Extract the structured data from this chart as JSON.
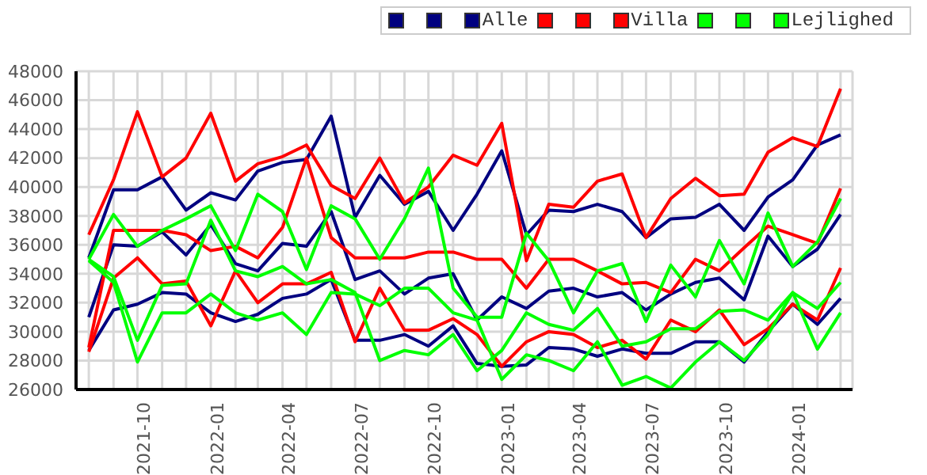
{
  "chart_data": {
    "type": "line",
    "x": [
      "2021-08",
      "2021-09",
      "2021-10",
      "2021-11",
      "2021-12",
      "2022-01",
      "2022-02",
      "2022-03",
      "2022-04",
      "2022-05",
      "2022-06",
      "2022-07",
      "2022-08",
      "2022-09",
      "2022-10",
      "2022-11",
      "2022-12",
      "2023-01",
      "2023-02",
      "2023-03",
      "2023-04",
      "2023-05",
      "2023-06",
      "2023-07",
      "2023-08",
      "2023-09",
      "2023-10",
      "2023-11",
      "2023-12",
      "2024-01",
      "2024-02",
      "2024-03"
    ],
    "series": [
      {
        "color": "#000080",
        "values": [
          35100,
          39800,
          39800,
          40700,
          38400,
          39600,
          39100,
          41100,
          41700,
          41900,
          44900,
          37900,
          40800,
          38800,
          39700,
          37000,
          39500,
          42500,
          36700,
          38400,
          38300,
          38800,
          38300,
          36500,
          37800,
          37900,
          38800,
          37000,
          39300,
          40500,
          42900,
          43600
        ]
      },
      {
        "color": "#000080",
        "values": [
          31000,
          36000,
          35900,
          36900,
          35300,
          37400,
          34700,
          34200,
          36100,
          35900,
          38300,
          33600,
          34200,
          32600,
          33700,
          34000,
          30800,
          32400,
          31600,
          32800,
          33000,
          32400,
          32700,
          31500,
          32600,
          33400,
          33700,
          32200,
          36600,
          34500,
          35700,
          38100
        ]
      },
      {
        "name": "Alle",
        "color": "#000080",
        "values": [
          28700,
          31500,
          31900,
          32700,
          32600,
          31300,
          30700,
          31200,
          32300,
          32600,
          33600,
          29400,
          29400,
          29800,
          29000,
          30400,
          27800,
          27600,
          27700,
          28900,
          28800,
          28300,
          28800,
          28500,
          28500,
          29300,
          29300,
          27900,
          30000,
          31900,
          30500,
          32300
        ]
      },
      {
        "color": "#ff0000",
        "values": [
          36700,
          40500,
          45200,
          40700,
          42000,
          45100,
          40400,
          41600,
          42100,
          42900,
          40100,
          39200,
          42000,
          38900,
          40000,
          42200,
          41500,
          44400,
          34900,
          38800,
          38600,
          40400,
          40900,
          36500,
          39200,
          40600,
          39400,
          39500,
          42400,
          43400,
          42800,
          46800
        ]
      },
      {
        "color": "#ff0000",
        "values": [
          28900,
          37000,
          37000,
          37000,
          36700,
          35600,
          35900,
          35100,
          37200,
          42000,
          36500,
          35100,
          35100,
          35100,
          35500,
          35500,
          35000,
          35000,
          33000,
          35000,
          35000,
          34200,
          33300,
          33400,
          32700,
          35000,
          34200,
          35800,
          37300,
          36700,
          36100,
          39900
        ]
      },
      {
        "name": "Villa",
        "color": "#ff0000",
        "values": [
          28600,
          33700,
          35100,
          33300,
          33500,
          30400,
          34200,
          32000,
          33300,
          33300,
          34100,
          29300,
          33000,
          30100,
          30100,
          30900,
          29800,
          27600,
          29300,
          30000,
          29800,
          28900,
          29400,
          28100,
          30800,
          30000,
          31500,
          29100,
          30200,
          31900,
          30800,
          34400
        ]
      },
      {
        "color": "#00ff00",
        "values": [
          35000,
          38100,
          35900,
          37000,
          37800,
          38700,
          35600,
          39500,
          38300,
          34300,
          38700,
          37800,
          35000,
          37800,
          41300,
          33000,
          31000,
          31000,
          36800,
          34900,
          31300,
          34200,
          34700,
          30700,
          34600,
          32400,
          36300,
          33300,
          38200,
          34500,
          36200,
          39200
        ]
      },
      {
        "color": "#00ff00",
        "values": [
          35000,
          33800,
          29400,
          33200,
          33300,
          37700,
          34200,
          33800,
          34500,
          33300,
          33600,
          32700,
          28000,
          28700,
          28400,
          29800,
          27300,
          28700,
          31300,
          30500,
          30100,
          31600,
          29000,
          29300,
          30200,
          30200,
          31400,
          31500,
          30800,
          32700,
          31600,
          33400
        ]
      },
      {
        "name": "Lejlighed",
        "color": "#00ff00",
        "values": [
          34900,
          33400,
          27900,
          31300,
          31300,
          32600,
          31300,
          30800,
          31300,
          29800,
          32700,
          32600,
          31800,
          33000,
          33000,
          31300,
          30800,
          26700,
          28400,
          28000,
          27300,
          29300,
          26300,
          26900,
          26100,
          27900,
          29300,
          28000,
          29800,
          32700,
          28800,
          31300
        ]
      }
    ],
    "xlim": [
      "2021-07-16",
      "2024-03-16"
    ],
    "xticks": [
      {
        "value": "2021-08",
        "label": null
      },
      {
        "value": "2021-09",
        "label": null
      },
      "2021-10",
      {
        "value": "2021-11",
        "label": null
      },
      {
        "value": "2021-12",
        "label": null
      },
      "2022-01",
      {
        "value": "2022-02",
        "label": null
      },
      {
        "value": "2022-03",
        "label": null
      },
      "2022-04",
      {
        "value": "2022-05",
        "label": null
      },
      {
        "value": "2022-06",
        "label": null
      },
      "2022-07",
      {
        "value": "2022-08",
        "label": null
      },
      {
        "value": "2022-09",
        "label": null
      },
      "2022-10",
      {
        "value": "2022-11",
        "label": null
      },
      {
        "value": "2022-12",
        "label": null
      },
      "2023-01",
      {
        "value": "2023-02",
        "label": null
      },
      {
        "value": "2023-03",
        "label": null
      },
      "2023-04",
      {
        "value": "2023-05",
        "label": null
      },
      {
        "value": "2023-06",
        "label": null
      },
      "2023-07",
      {
        "value": "2023-08",
        "label": null
      },
      {
        "value": "2023-09",
        "label": null
      },
      "2023-10",
      {
        "value": "2023-11",
        "label": null
      },
      {
        "value": "2023-12",
        "label": null
      },
      "2024-01",
      {
        "value": "2024-02",
        "label": null
      },
      {
        "value": "2024-03",
        "label": null
      }
    ],
    "ylim": [
      26000,
      48000
    ],
    "yticks": [
      26000,
      28000,
      30000,
      32000,
      34000,
      36000,
      38000,
      40000,
      42000,
      44000,
      46000,
      48000
    ],
    "grid": true,
    "legend": "top right"
  }
}
